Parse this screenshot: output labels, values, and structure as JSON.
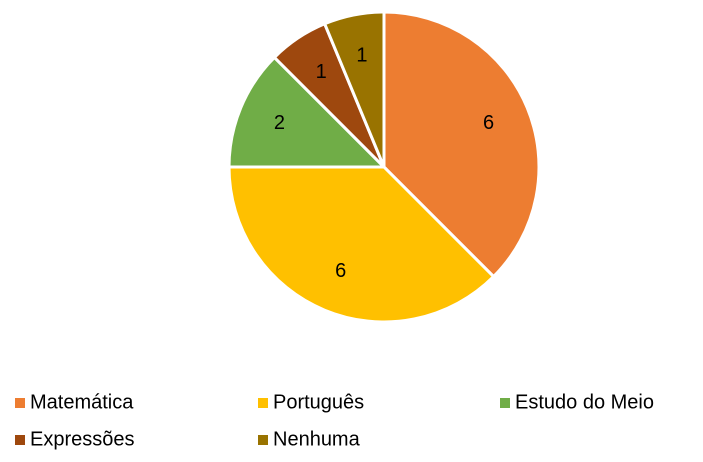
{
  "chart_data": {
    "type": "pie",
    "categories": [
      "Matemática",
      "Português",
      "Estudo do Meio",
      "Expressões",
      "Nenhuma"
    ],
    "values": [
      6,
      6,
      2,
      1,
      1
    ],
    "colors": [
      "#ed7d31",
      "#ffc000",
      "#70ad47",
      "#9e480e",
      "#997300"
    ],
    "legend": "bottom"
  }
}
